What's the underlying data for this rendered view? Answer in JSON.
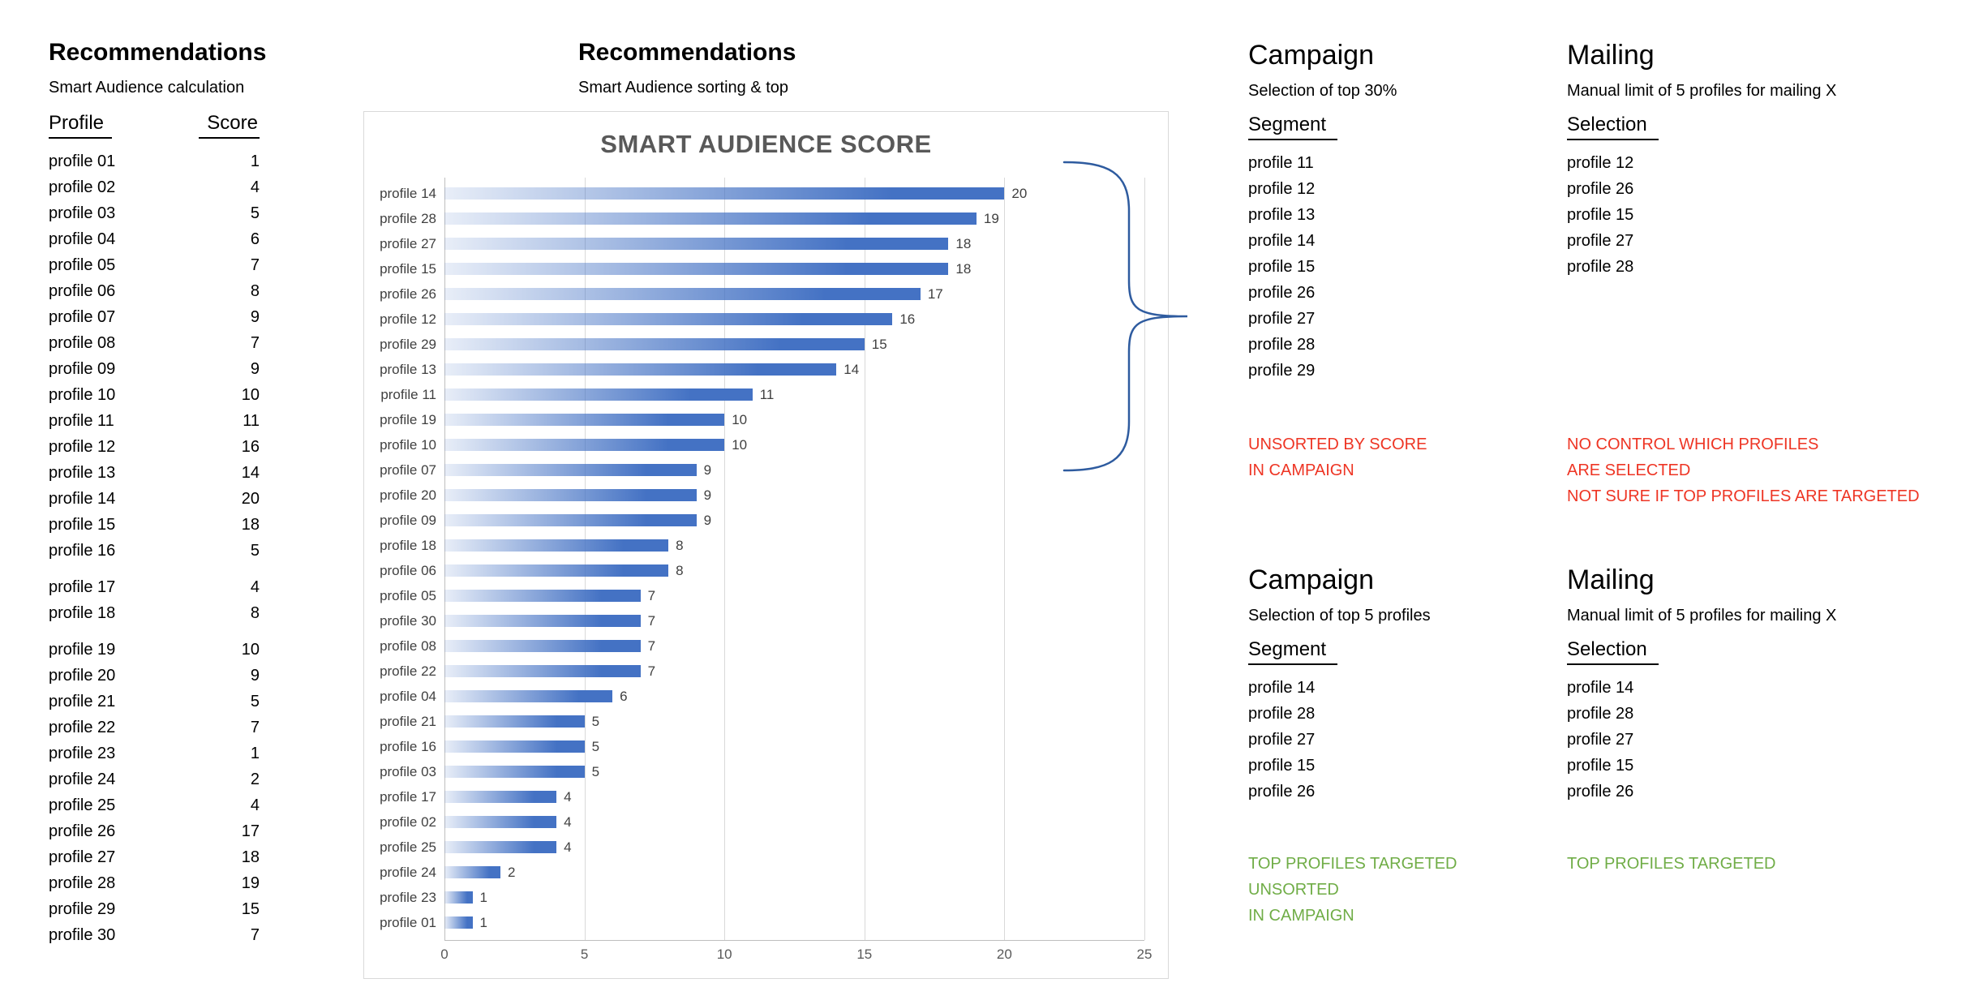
{
  "colors": {
    "bar_blue": "#4472c4",
    "red": "#ee3524",
    "green": "#70ad47",
    "brace_blue": "#2e5b9f",
    "title_gray": "#595959",
    "grid": "#d9d9d9",
    "axis": "#bfbfbf"
  },
  "left_panel": {
    "title": "Recommendations",
    "subtitle": "Smart Audience calculation",
    "col_profile": "Profile",
    "col_score": "Score",
    "gaps_after": [
      15,
      17
    ],
    "rows": [
      {
        "profile": "profile 01",
        "score": 1
      },
      {
        "profile": "profile 02",
        "score": 4
      },
      {
        "profile": "profile 03",
        "score": 5
      },
      {
        "profile": "profile 04",
        "score": 6
      },
      {
        "profile": "profile 05",
        "score": 7
      },
      {
        "profile": "profile 06",
        "score": 8
      },
      {
        "profile": "profile 07",
        "score": 9
      },
      {
        "profile": "profile 08",
        "score": 7
      },
      {
        "profile": "profile 09",
        "score": 9
      },
      {
        "profile": "profile 10",
        "score": 10
      },
      {
        "profile": "profile 11",
        "score": 11
      },
      {
        "profile": "profile 12",
        "score": 16
      },
      {
        "profile": "profile 13",
        "score": 14
      },
      {
        "profile": "profile 14",
        "score": 20
      },
      {
        "profile": "profile 15",
        "score": 18
      },
      {
        "profile": "profile 16",
        "score": 5
      },
      {
        "profile": "profile 17",
        "score": 4
      },
      {
        "profile": "profile 18",
        "score": 8
      },
      {
        "profile": "profile 19",
        "score": 10
      },
      {
        "profile": "profile 20",
        "score": 9
      },
      {
        "profile": "profile 21",
        "score": 5
      },
      {
        "profile": "profile 22",
        "score": 7
      },
      {
        "profile": "profile 23",
        "score": 1
      },
      {
        "profile": "profile 24",
        "score": 2
      },
      {
        "profile": "profile 25",
        "score": 4
      },
      {
        "profile": "profile 26",
        "score": 17
      },
      {
        "profile": "profile 27",
        "score": 18
      },
      {
        "profile": "profile 28",
        "score": 19
      },
      {
        "profile": "profile 29",
        "score": 15
      },
      {
        "profile": "profile 30",
        "score": 7
      }
    ]
  },
  "chart_panel": {
    "title": "Recommendations",
    "subtitle": "Smart Audience sorting & top"
  },
  "chart_data": {
    "type": "bar",
    "orientation": "horizontal",
    "title": "SMART AUDIENCE SCORE",
    "categories": [
      "profile 14",
      "profile 28",
      "profile 27",
      "profile 15",
      "profile 26",
      "profile 12",
      "profile 29",
      "profile 13",
      "profile 11",
      "profile 19",
      "profile 10",
      "profile 07",
      "profile 20",
      "profile 09",
      "profile 18",
      "profile 06",
      "profile 05",
      "profile 30",
      "profile 08",
      "profile 22",
      "profile 04",
      "profile 21",
      "profile 16",
      "profile 03",
      "profile 17",
      "profile 02",
      "profile 25",
      "profile 24",
      "profile 23",
      "profile 01"
    ],
    "values": [
      20,
      19,
      18,
      18,
      17,
      16,
      15,
      14,
      11,
      10,
      10,
      9,
      9,
      9,
      8,
      8,
      7,
      7,
      7,
      7,
      6,
      5,
      5,
      5,
      4,
      4,
      4,
      2,
      1,
      1
    ],
    "xlim": [
      0,
      25
    ],
    "x_ticks": [
      0,
      5,
      10,
      15,
      20,
      25
    ],
    "grid": true,
    "data_labels": true,
    "legend": "none"
  },
  "campaign_top": {
    "title": "Campaign",
    "subtitle": "Selection of top 30%",
    "col": "Segment",
    "items": [
      "profile 11",
      "profile 12",
      "profile 13",
      "profile 14",
      "profile 15",
      "profile 26",
      "profile 27",
      "profile 28",
      "profile 29"
    ],
    "notes": [
      "UNSORTED BY SCORE",
      "IN CAMPAIGN"
    ],
    "note_color": "red"
  },
  "mailing_top": {
    "title": "Mailing",
    "subtitle": "Manual limit of 5 profiles for mailing X",
    "col": "Selection",
    "items": [
      "profile 12",
      "profile 26",
      "profile 15",
      "profile 27",
      "profile 28"
    ],
    "notes": [
      "NO CONTROL WHICH PROFILES",
      "ARE SELECTED",
      "NOT SURE IF TOP PROFILES ARE TARGETED"
    ],
    "note_color": "red"
  },
  "campaign_bottom": {
    "title": "Campaign",
    "subtitle": "Selection of top 5 profiles",
    "col": "Segment",
    "items": [
      "profile 14",
      "profile 28",
      "profile 27",
      "profile 15",
      "profile 26"
    ],
    "notes": [
      "TOP PROFILES TARGETED",
      "UNSORTED",
      "IN CAMPAIGN"
    ],
    "note_color": "green"
  },
  "mailing_bottom": {
    "title": "Mailing",
    "subtitle": "Manual limit of 5 profiles for mailing X",
    "col": "Selection",
    "items": [
      "profile 14",
      "profile 28",
      "profile 27",
      "profile 15",
      "profile 26"
    ],
    "notes": [
      "TOP PROFILES TARGETED"
    ],
    "note_color": "green"
  }
}
